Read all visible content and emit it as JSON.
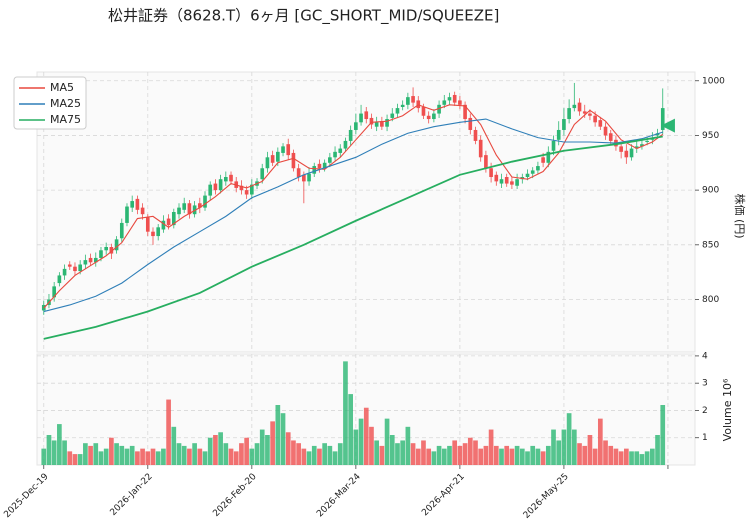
{
  "chart_data": {
    "type": "candlestick",
    "title": "松井証券（8628.T）6ヶ月 [GC_SHORT_MID/SQUEEZE]",
    "ylabel": "株価 (円)",
    "y2label": "Volume 10⁶",
    "up_color": "#2bb673",
    "down_color": "#ef4f4f",
    "grid": true,
    "legend": "upper left",
    "xlim": [
      -1.3,
      125.2
    ],
    "xticks": [
      {
        "value": 0,
        "label": "2025-Dec-19"
      },
      {
        "value": 20,
        "label": "2026-Jan-22"
      },
      {
        "value": 40,
        "label": "2026-Feb-20"
      },
      {
        "value": 60,
        "label": "2026-Mar-24"
      },
      {
        "value": 80,
        "label": "2026-Apr-21"
      },
      {
        "value": 100,
        "label": "2026-May-25"
      },
      {
        "value": 120,
        "label": null
      }
    ],
    "ylim": [
      752,
      1008
    ],
    "yticks": [
      800,
      850,
      900,
      950,
      1000
    ],
    "y2lim": [
      0,
      4.07
    ],
    "y2ticks": [
      1,
      2,
      3,
      4
    ],
    "open": [
      790,
      795,
      802,
      815,
      822,
      832,
      830,
      826,
      832,
      838,
      834,
      838,
      845,
      848,
      845,
      856,
      870,
      884,
      892,
      884,
      875,
      862,
      858,
      864,
      874,
      868,
      878,
      882,
      888,
      878,
      888,
      884,
      895,
      906,
      900,
      908,
      914,
      908,
      904,
      900,
      896,
      904,
      910,
      920,
      932,
      926,
      934,
      942,
      934,
      920,
      914,
      908,
      915,
      924,
      920,
      925,
      930,
      934,
      938,
      945,
      955,
      962,
      972,
      966,
      958,
      963,
      958,
      966,
      970,
      976,
      978,
      986,
      982,
      976,
      968,
      965,
      970,
      978,
      982,
      987,
      982,
      978,
      966,
      955,
      946,
      932,
      920,
      914,
      906,
      912,
      908,
      904,
      910,
      912,
      915,
      918,
      930,
      925,
      936,
      946,
      955,
      965,
      975,
      980,
      972,
      970,
      968,
      964,
      958,
      952,
      946,
      940,
      936,
      930,
      938,
      940,
      944,
      946,
      950,
      955
    ],
    "high": [
      799,
      805,
      816,
      825,
      832,
      835,
      834,
      836,
      841,
      842,
      843,
      848,
      852,
      851,
      858,
      874,
      888,
      895,
      895,
      888,
      878,
      866,
      869,
      877,
      878,
      883,
      888,
      893,
      891,
      890,
      893,
      899,
      908,
      910,
      914,
      917,
      917,
      912,
      909,
      904,
      910,
      911,
      924,
      935,
      936,
      939,
      943,
      947,
      937,
      924,
      917,
      921,
      925,
      928,
      928,
      934,
      940,
      942,
      948,
      959,
      970,
      978,
      976,
      970,
      967,
      967,
      969,
      975,
      979,
      982,
      989,
      994,
      986,
      979,
      972,
      974,
      982,
      987,
      989,
      990,
      986,
      981,
      970,
      958,
      950,
      936,
      925,
      917,
      915,
      915,
      912,
      915,
      915,
      919,
      921,
      926,
      934,
      940,
      950,
      963,
      975,
      983,
      998,
      984,
      978,
      974,
      972,
      967,
      962,
      955,
      950,
      944,
      942,
      942,
      945,
      946,
      949,
      953,
      956,
      993
    ],
    "low": [
      786,
      792,
      798,
      812,
      818,
      827,
      822,
      823,
      828,
      831,
      830,
      835,
      841,
      837,
      842,
      852,
      867,
      880,
      878,
      873,
      858,
      850,
      854,
      861,
      864,
      865,
      874,
      879,
      874,
      875,
      879,
      881,
      891,
      896,
      897,
      904,
      905,
      898,
      896,
      892,
      892,
      901,
      906,
      916,
      922,
      922,
      931,
      928,
      917,
      908,
      888,
      904,
      912,
      916,
      917,
      921,
      927,
      930,
      935,
      941,
      951,
      959,
      961,
      956,
      954,
      955,
      954,
      963,
      966,
      973,
      974,
      976,
      971,
      965,
      961,
      962,
      966,
      975,
      978,
      977,
      974,
      961,
      951,
      942,
      926,
      916,
      907,
      904,
      902,
      903,
      901,
      901,
      906,
      909,
      911,
      915,
      921,
      921,
      932,
      941,
      950,
      961,
      972,
      968,
      966,
      964,
      958,
      955,
      946,
      942,
      936,
      929,
      924,
      927,
      934,
      937,
      941,
      942,
      947,
      951
    ],
    "close": [
      795,
      800,
      812,
      822,
      828,
      830,
      826,
      832,
      836,
      834,
      838,
      845,
      848,
      842,
      855,
      870,
      885,
      890,
      882,
      878,
      862,
      858,
      866,
      872,
      868,
      880,
      884,
      888,
      878,
      886,
      884,
      895,
      905,
      900,
      910,
      912,
      908,
      902,
      900,
      896,
      905,
      908,
      920,
      930,
      925,
      935,
      940,
      932,
      920,
      912,
      908,
      915,
      922,
      920,
      925,
      930,
      935,
      938,
      945,
      955,
      962,
      970,
      965,
      960,
      962,
      958,
      965,
      970,
      975,
      978,
      985,
      980,
      975,
      968,
      965,
      970,
      978,
      982,
      985,
      980,
      978,
      965,
      955,
      945,
      930,
      920,
      912,
      908,
      910,
      906,
      905,
      910,
      912,
      915,
      918,
      922,
      925,
      935,
      945,
      955,
      965,
      975,
      978,
      972,
      970,
      968,
      962,
      958,
      950,
      945,
      940,
      935,
      930,
      938,
      940,
      942,
      945,
      948,
      952,
      975
    ],
    "volume": [
      0.6,
      1.1,
      0.9,
      1.5,
      0.9,
      0.5,
      0.4,
      0.4,
      0.8,
      0.7,
      0.8,
      0.5,
      0.6,
      1.0,
      0.8,
      0.7,
      0.6,
      0.7,
      0.5,
      0.6,
      0.5,
      0.6,
      0.5,
      0.6,
      2.4,
      1.4,
      0.8,
      0.7,
      0.6,
      0.8,
      0.6,
      0.5,
      1.0,
      1.1,
      1.2,
      0.8,
      0.6,
      0.5,
      0.8,
      1.0,
      0.6,
      0.8,
      1.3,
      1.1,
      1.6,
      2.2,
      1.9,
      1.2,
      0.9,
      0.8,
      0.6,
      0.5,
      0.7,
      0.6,
      0.8,
      0.7,
      0.5,
      0.8,
      3.8,
      2.6,
      1.3,
      1.7,
      2.1,
      1.4,
      0.9,
      0.7,
      1.7,
      1.1,
      0.8,
      0.9,
      1.4,
      0.8,
      0.6,
      0.9,
      0.6,
      0.5,
      0.7,
      0.6,
      0.7,
      0.9,
      0.7,
      0.8,
      1.0,
      0.9,
      0.6,
      0.7,
      1.3,
      0.7,
      0.6,
      0.7,
      0.6,
      0.7,
      0.6,
      0.5,
      0.7,
      0.6,
      0.5,
      0.7,
      1.3,
      0.9,
      1.3,
      1.9,
      1.3,
      0.8,
      0.7,
      1.1,
      0.6,
      1.7,
      0.9,
      0.7,
      0.6,
      0.5,
      0.6,
      0.5,
      0.5,
      0.4,
      0.5,
      0.6,
      1.1,
      2.2
    ],
    "series": [
      {
        "name": "MA5",
        "color": "#e8493f",
        "x": [
          0,
          3,
          6,
          9,
          12,
          15,
          18,
          21,
          24,
          27,
          30,
          33,
          36,
          39,
          42,
          45,
          48,
          51,
          54,
          57,
          60,
          63,
          66,
          69,
          72,
          75,
          78,
          81,
          84,
          87,
          90,
          93,
          96,
          99,
          102,
          105,
          108,
          111,
          114,
          117,
          119
        ],
        "values": [
          792,
          808,
          822,
          831,
          840,
          852,
          874,
          876,
          866,
          876,
          884,
          894,
          906,
          902,
          908,
          925,
          929,
          920,
          919,
          930,
          946,
          962,
          963,
          968,
          978,
          973,
          978,
          977,
          960,
          932,
          912,
          910,
          917,
          934,
          960,
          973,
          963,
          946,
          938,
          944,
          951
        ]
      },
      {
        "name": "MA25",
        "color": "#2f7fb8",
        "x": [
          0,
          5,
          10,
          15,
          20,
          25,
          30,
          35,
          40,
          45,
          50,
          55,
          60,
          65,
          70,
          75,
          80,
          85,
          90,
          95,
          100,
          105,
          110,
          115,
          119
        ],
        "values": [
          789,
          795,
          803,
          815,
          832,
          848,
          862,
          876,
          893,
          903,
          914,
          922,
          930,
          942,
          952,
          958,
          962,
          965,
          956,
          948,
          944,
          944,
          943,
          947,
          953
        ]
      },
      {
        "name": "MA75",
        "color": "#27ae60",
        "x": [
          0,
          10,
          20,
          30,
          40,
          50,
          60,
          70,
          80,
          90,
          100,
          110,
          119
        ],
        "values": [
          764,
          775,
          789,
          806,
          830,
          850,
          872,
          893,
          914,
          926,
          936,
          942,
          949
        ]
      }
    ],
    "signal": {
      "x": 120,
      "value": 959,
      "color": "#2bb673"
    }
  }
}
